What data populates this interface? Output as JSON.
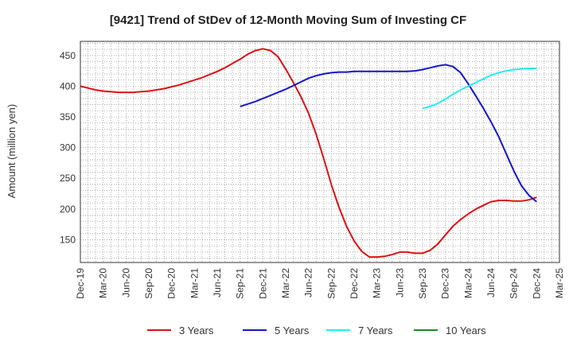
{
  "chart_data": {
    "type": "line",
    "title": "[9421]  Trend of StDev of 12-Month Moving Sum of Investing CF",
    "xlabel": "",
    "ylabel": "Amount (million yen)",
    "ylim": [
      113,
      473
    ],
    "yticks": [
      150,
      200,
      250,
      300,
      350,
      400,
      450
    ],
    "x_range": [
      "2019-12",
      "2025-03"
    ],
    "xtick_labels": [
      "Dec-19",
      "Mar-20",
      "Jun-20",
      "Sep-20",
      "Dec-20",
      "Mar-21",
      "Jun-21",
      "Sep-21",
      "Dec-21",
      "Mar-22",
      "Jun-22",
      "Sep-22",
      "Dec-22",
      "Mar-23",
      "Jun-23",
      "Sep-23",
      "Dec-23",
      "Mar-24",
      "Jun-24",
      "Sep-24",
      "Dec-24",
      "Mar-25"
    ],
    "grid": true,
    "legend_position": "bottom",
    "series": [
      {
        "name": "3 Years",
        "color": "#dd1111",
        "points": [
          [
            "2019-12",
            400
          ],
          [
            "2020-01",
            397
          ],
          [
            "2020-02",
            394
          ],
          [
            "2020-03",
            392
          ],
          [
            "2020-04",
            391
          ],
          [
            "2020-05",
            390
          ],
          [
            "2020-06",
            390
          ],
          [
            "2020-07",
            390
          ],
          [
            "2020-08",
            391
          ],
          [
            "2020-09",
            392
          ],
          [
            "2020-10",
            394
          ],
          [
            "2020-11",
            396
          ],
          [
            "2020-12",
            399
          ],
          [
            "2021-01",
            402
          ],
          [
            "2021-02",
            406
          ],
          [
            "2021-03",
            410
          ],
          [
            "2021-04",
            414
          ],
          [
            "2021-05",
            419
          ],
          [
            "2021-06",
            424
          ],
          [
            "2021-07",
            430
          ],
          [
            "2021-08",
            437
          ],
          [
            "2021-09",
            444
          ],
          [
            "2021-10",
            452
          ],
          [
            "2021-11",
            458
          ],
          [
            "2021-12",
            461
          ],
          [
            "2022-01",
            458
          ],
          [
            "2022-02",
            448
          ],
          [
            "2022-03",
            428
          ],
          [
            "2022-04",
            406
          ],
          [
            "2022-05",
            383
          ],
          [
            "2022-06",
            356
          ],
          [
            "2022-07",
            322
          ],
          [
            "2022-08",
            282
          ],
          [
            "2022-09",
            240
          ],
          [
            "2022-10",
            203
          ],
          [
            "2022-11",
            172
          ],
          [
            "2022-12",
            148
          ],
          [
            "2023-01",
            131
          ],
          [
            "2023-02",
            122
          ],
          [
            "2023-03",
            122
          ],
          [
            "2023-04",
            123
          ],
          [
            "2023-05",
            126
          ],
          [
            "2023-06",
            130
          ],
          [
            "2023-07",
            130
          ],
          [
            "2023-08",
            128
          ],
          [
            "2023-09",
            128
          ],
          [
            "2023-10",
            133
          ],
          [
            "2023-11",
            143
          ],
          [
            "2023-12",
            158
          ],
          [
            "2024-01",
            172
          ],
          [
            "2024-02",
            183
          ],
          [
            "2024-03",
            192
          ],
          [
            "2024-04",
            200
          ],
          [
            "2024-05",
            206
          ],
          [
            "2024-06",
            212
          ],
          [
            "2024-07",
            214
          ],
          [
            "2024-08",
            214
          ],
          [
            "2024-09",
            213
          ],
          [
            "2024-10",
            213
          ],
          [
            "2024-11",
            215
          ],
          [
            "2024-12",
            219
          ]
        ]
      },
      {
        "name": "5 Years",
        "color": "#1515cc",
        "points": [
          [
            "2021-09",
            367
          ],
          [
            "2021-10",
            371
          ],
          [
            "2021-11",
            375
          ],
          [
            "2021-12",
            380
          ],
          [
            "2022-01",
            385
          ],
          [
            "2022-02",
            390
          ],
          [
            "2022-03",
            395
          ],
          [
            "2022-04",
            401
          ],
          [
            "2022-05",
            407
          ],
          [
            "2022-06",
            413
          ],
          [
            "2022-07",
            417
          ],
          [
            "2022-08",
            420
          ],
          [
            "2022-09",
            422
          ],
          [
            "2022-10",
            423
          ],
          [
            "2022-11",
            423
          ],
          [
            "2022-12",
            424
          ],
          [
            "2023-01",
            424
          ],
          [
            "2023-02",
            424
          ],
          [
            "2023-03",
            424
          ],
          [
            "2023-04",
            424
          ],
          [
            "2023-05",
            424
          ],
          [
            "2023-06",
            424
          ],
          [
            "2023-07",
            424
          ],
          [
            "2023-08",
            425
          ],
          [
            "2023-09",
            427
          ],
          [
            "2023-10",
            430
          ],
          [
            "2023-11",
            433
          ],
          [
            "2023-12",
            435
          ],
          [
            "2024-01",
            432
          ],
          [
            "2024-02",
            422
          ],
          [
            "2024-03",
            404
          ],
          [
            "2024-04",
            384
          ],
          [
            "2024-05",
            364
          ],
          [
            "2024-06",
            342
          ],
          [
            "2024-07",
            318
          ],
          [
            "2024-08",
            290
          ],
          [
            "2024-09",
            262
          ],
          [
            "2024-10",
            238
          ],
          [
            "2024-11",
            222
          ],
          [
            "2024-12",
            212
          ]
        ]
      },
      {
        "name": "7 Years",
        "color": "#22eeee",
        "points": [
          [
            "2023-09",
            364
          ],
          [
            "2023-10",
            367
          ],
          [
            "2023-11",
            372
          ],
          [
            "2023-12",
            379
          ],
          [
            "2024-01",
            387
          ],
          [
            "2024-02",
            394
          ],
          [
            "2024-03",
            400
          ],
          [
            "2024-04",
            406
          ],
          [
            "2024-05",
            412
          ],
          [
            "2024-06",
            418
          ],
          [
            "2024-07",
            422
          ],
          [
            "2024-08",
            425
          ],
          [
            "2024-09",
            427
          ],
          [
            "2024-10",
            428
          ],
          [
            "2024-11",
            429
          ],
          [
            "2024-12",
            429
          ]
        ]
      },
      {
        "name": "10 Years",
        "color": "#228822",
        "points": []
      }
    ]
  }
}
